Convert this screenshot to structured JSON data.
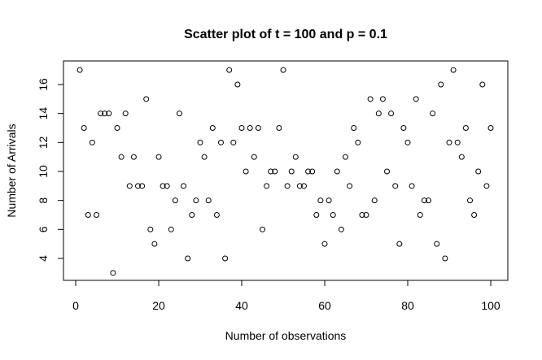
{
  "chart_data": {
    "type": "scatter",
    "title": "Scatter plot of t = 100 and p = 0.1",
    "xlabel": "Number of observations",
    "ylabel": "Number of Arrivals",
    "xlim": [
      0,
      100
    ],
    "ylim": [
      3,
      17
    ],
    "x_ticks": [
      0,
      20,
      40,
      60,
      80,
      100
    ],
    "y_ticks": [
      4,
      6,
      8,
      10,
      12,
      14,
      16
    ],
    "grid": false,
    "legend": "none",
    "x": [
      1,
      2,
      3,
      4,
      5,
      6,
      7,
      8,
      9,
      10,
      11,
      12,
      13,
      14,
      15,
      16,
      17,
      18,
      19,
      20,
      21,
      22,
      23,
      24,
      25,
      26,
      27,
      28,
      29,
      30,
      31,
      32,
      33,
      34,
      35,
      36,
      37,
      38,
      39,
      40,
      41,
      42,
      43,
      44,
      45,
      46,
      47,
      48,
      49,
      50,
      51,
      52,
      53,
      54,
      55,
      56,
      57,
      58,
      59,
      60,
      61,
      62,
      63,
      64,
      65,
      66,
      67,
      68,
      69,
      70,
      71,
      72,
      73,
      74,
      75,
      76,
      77,
      78,
      79,
      80,
      81,
      82,
      83,
      84,
      85,
      86,
      87,
      88,
      89,
      90,
      91,
      92,
      93,
      94,
      95,
      96,
      97,
      98,
      99,
      100
    ],
    "y": [
      17,
      13,
      7,
      12,
      7,
      14,
      14,
      14,
      3,
      13,
      11,
      14,
      9,
      11,
      9,
      9,
      15,
      6,
      5,
      11,
      9,
      9,
      6,
      8,
      14,
      9,
      4,
      7,
      8,
      12,
      11,
      8,
      13,
      7,
      12,
      4,
      17,
      12,
      16,
      13,
      10,
      13,
      11,
      13,
      6,
      9,
      10,
      10,
      13,
      17,
      9,
      10,
      11,
      9,
      9,
      10,
      10,
      7,
      8,
      5,
      8,
      7,
      10,
      6,
      11,
      9,
      13,
      12,
      7,
      7,
      15,
      8,
      14,
      15,
      10,
      14,
      9,
      5,
      13,
      12,
      9,
      15,
      7,
      8,
      8,
      14,
      5,
      16,
      4,
      12,
      17,
      12,
      11,
      13,
      8,
      7,
      10,
      16,
      9,
      13
    ]
  }
}
